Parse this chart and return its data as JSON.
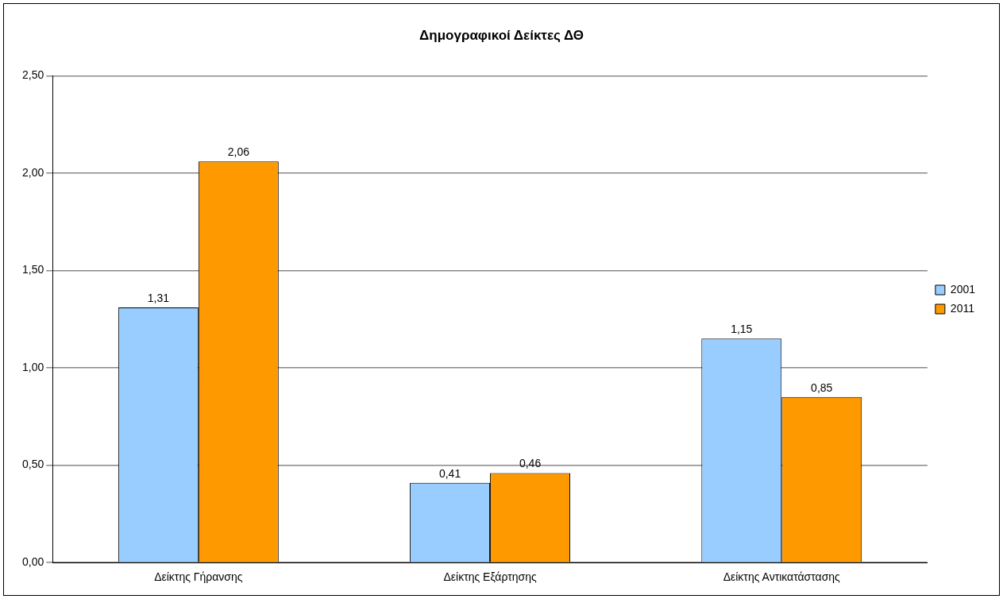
{
  "chart_data": {
    "type": "bar",
    "title": "Δημογραφικοί Δείκτες ΔΘ",
    "categories": [
      "Δείκτης Γήρανσης",
      "Δείκτης Εξάρτησης",
      "Δείκτης Αντικατάστασης"
    ],
    "series": [
      {
        "name": "2001",
        "color": "#99ccff",
        "values": [
          1.31,
          0.41,
          1.15
        ],
        "value_labels": [
          "1,31",
          "0,41",
          "1,15"
        ]
      },
      {
        "name": "2011",
        "color": "#ff9900",
        "values": [
          2.06,
          0.46,
          0.85
        ],
        "value_labels": [
          "2,06",
          "0,46",
          "0,85"
        ]
      }
    ],
    "ylim": [
      0,
      2.5
    ],
    "yticks": [
      {
        "value": 0,
        "label": "0,00"
      },
      {
        "value": 0.5,
        "label": "0,50"
      },
      {
        "value": 1,
        "label": "1,00"
      },
      {
        "value": 1.5,
        "label": "1,50"
      },
      {
        "value": 2,
        "label": "2,00"
      },
      {
        "value": 2.5,
        "label": "2,50"
      }
    ],
    "grid": "y",
    "legend": "right"
  }
}
